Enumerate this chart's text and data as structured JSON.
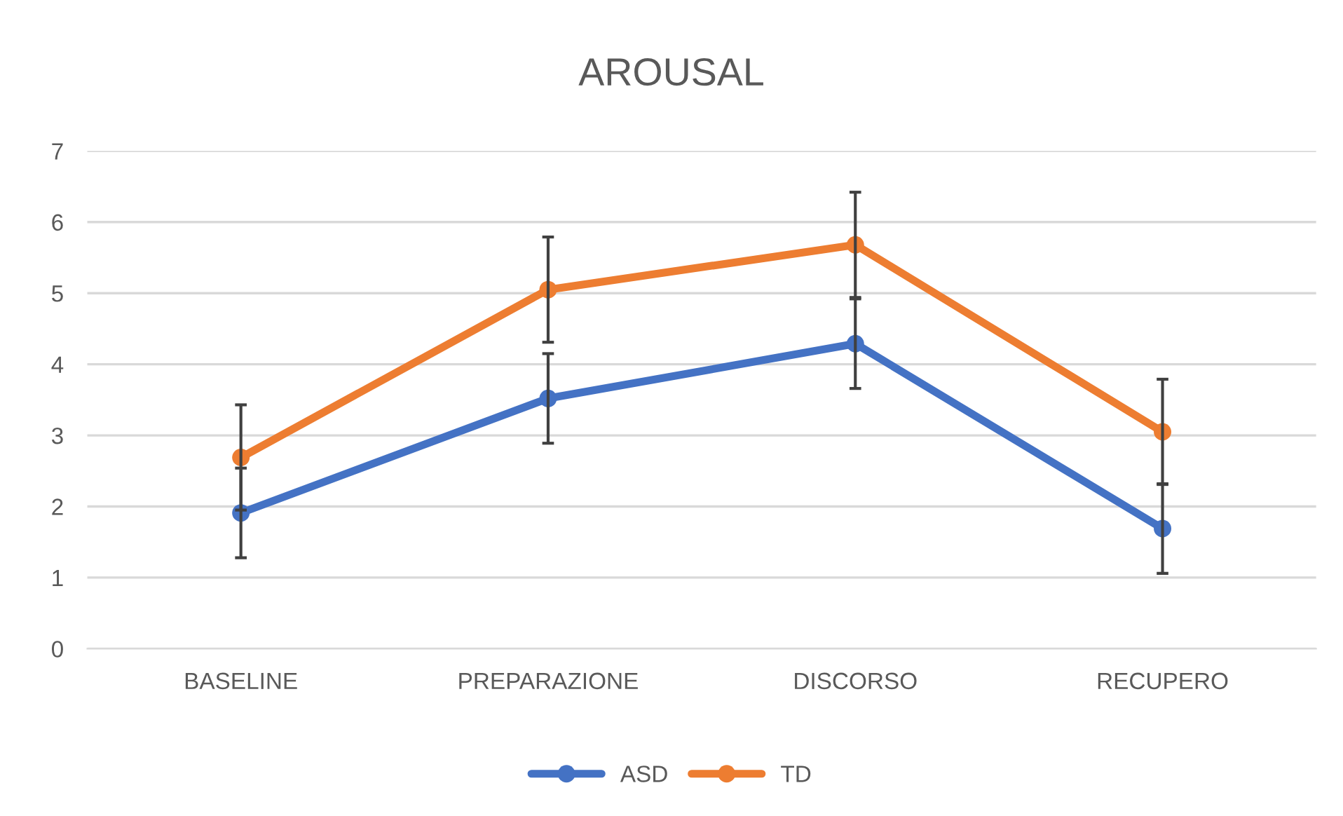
{
  "chart_data": {
    "type": "line",
    "title": "AROUSAL",
    "categories": [
      "BASELINE",
      "PREPARAZIONE",
      "DISCORSO",
      "RECUPERO"
    ],
    "series": [
      {
        "name": "ASD",
        "color": "#4472c4",
        "values": [
          1.91,
          3.52,
          4.29,
          1.69
        ],
        "errors": [
          0.63,
          0.63,
          0.63,
          0.63
        ]
      },
      {
        "name": "TD",
        "color": "#ed7d31",
        "values": [
          2.69,
          5.05,
          5.68,
          3.05
        ],
        "errors": [
          0.74,
          0.74,
          0.74,
          0.74
        ]
      }
    ],
    "ylim": [
      0,
      7
    ],
    "yticks": [
      0,
      1,
      2,
      3,
      4,
      5,
      6,
      7
    ],
    "grid": "y",
    "legend": "bottom",
    "marker": "circle",
    "line_style": "solid"
  }
}
